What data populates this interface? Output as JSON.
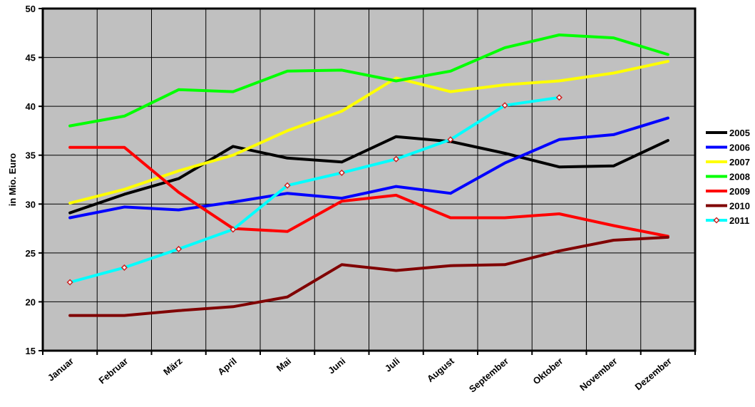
{
  "chart_data": {
    "type": "line",
    "title": "",
    "xlabel": "",
    "ylabel": "in Mio. Euro",
    "ylim": [
      15,
      50
    ],
    "yticks": [
      15,
      20,
      25,
      30,
      35,
      40,
      45,
      50
    ],
    "grid": true,
    "legend_position": "right",
    "plot_background": "#c0c0c0",
    "categories": [
      "Januar",
      "Februar",
      "März",
      "April",
      "Mai",
      "Juni",
      "Juli",
      "August",
      "September",
      "Oktober",
      "November",
      "Dezember"
    ],
    "series": [
      {
        "name": "2005",
        "color": "#000000",
        "marker": "none",
        "values": [
          29.1,
          31.0,
          32.6,
          35.9,
          34.7,
          34.3,
          36.9,
          36.4,
          35.2,
          33.8,
          33.9,
          36.5
        ]
      },
      {
        "name": "2006",
        "color": "#0000ff",
        "marker": "none",
        "values": [
          28.6,
          29.7,
          29.4,
          30.2,
          31.1,
          30.6,
          31.8,
          31.1,
          34.2,
          36.6,
          37.1,
          38.8
        ]
      },
      {
        "name": "2007",
        "color": "#ffff00",
        "marker": "none",
        "values": [
          30.1,
          31.5,
          33.4,
          35.0,
          37.5,
          39.5,
          42.9,
          41.5,
          42.2,
          42.6,
          43.4,
          44.6
        ]
      },
      {
        "name": "2008",
        "color": "#00ff00",
        "marker": "none",
        "values": [
          38.0,
          39.0,
          41.7,
          41.5,
          43.6,
          43.7,
          42.6,
          43.6,
          46.0,
          47.3,
          47.0,
          45.3
        ]
      },
      {
        "name": "2009",
        "color": "#ff0000",
        "marker": "none",
        "values": [
          35.8,
          35.8,
          31.2,
          27.5,
          27.2,
          30.3,
          30.9,
          28.6,
          28.6,
          29.0,
          27.8,
          26.7
        ]
      },
      {
        "name": "2010",
        "color": "#800000",
        "marker": "none",
        "values": [
          18.6,
          18.6,
          19.1,
          19.5,
          20.5,
          23.8,
          23.2,
          23.7,
          23.8,
          25.2,
          26.3,
          26.6
        ]
      },
      {
        "name": "2011",
        "color": "#00ffff",
        "marker": "diamond",
        "values": [
          22.0,
          23.5,
          25.4,
          27.4,
          31.9,
          33.2,
          34.6,
          36.6,
          40.1,
          40.9,
          null,
          null
        ]
      }
    ]
  }
}
